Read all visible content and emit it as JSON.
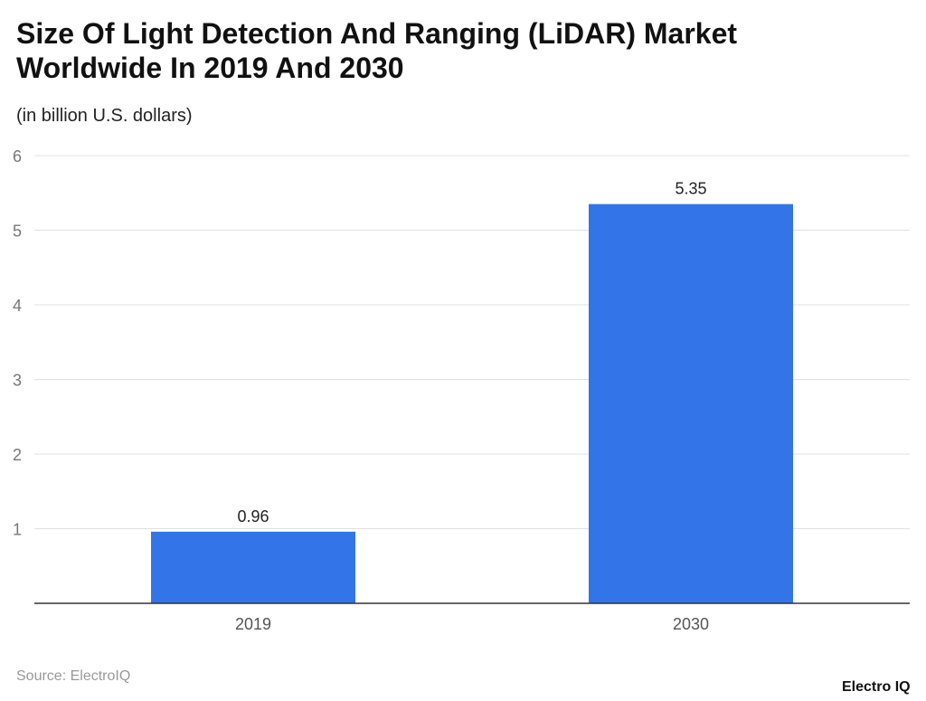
{
  "chart_data": {
    "type": "bar",
    "title": "Size Of Light Detection And Ranging (LiDAR) Market Worldwide In 2019 And 2030",
    "subtitle": "(in billion U.S. dollars)",
    "categories": [
      "2019",
      "2030"
    ],
    "values": [
      0.96,
      5.35
    ],
    "data_labels": [
      "0.96",
      "5.35"
    ],
    "ylim": [
      0,
      6
    ],
    "yticks": [
      1,
      2,
      3,
      4,
      5,
      6
    ],
    "grid": true,
    "bar_color": "#3375e8"
  },
  "source": "Source: ElectroIQ",
  "logo": "Electro IQ"
}
